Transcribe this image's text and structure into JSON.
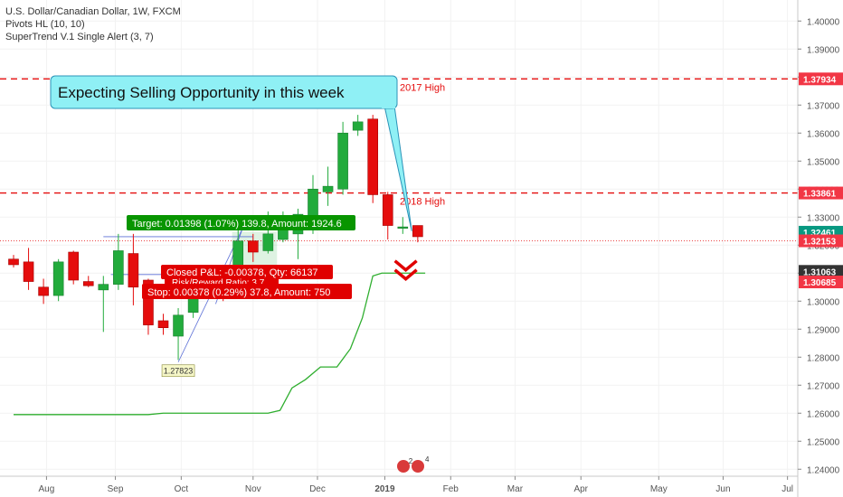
{
  "chart_data": {
    "type": "candlestick",
    "title": "U.S. Dollar/Canadian Dollar, 1W, FXCM",
    "indicators": [
      "Pivots HL (10, 10)",
      "SuperTrend V.1 Single Alert (3, 7)"
    ],
    "price_axis": {
      "range": [
        1.2375,
        1.4075
      ],
      "ticks": [
        "1.40000",
        "1.39000",
        "1.38000",
        "1.37000",
        "1.36000",
        "1.35000",
        "1.34000",
        "1.33000",
        "1.32000",
        "1.31000",
        "1.30000",
        "1.29000",
        "1.28000",
        "1.27000",
        "1.26000",
        "1.25000",
        "1.24000"
      ]
    },
    "time_axis": {
      "labels": [
        {
          "text": "Aug",
          "bar": 2.2,
          "bold": false
        },
        {
          "text": "Sep",
          "bar": 6.8,
          "bold": false
        },
        {
          "text": "Oct",
          "bar": 11.2,
          "bold": false
        },
        {
          "text": "Nov",
          "bar": 16.0,
          "bold": false
        },
        {
          "text": "Dec",
          "bar": 20.3,
          "bold": false
        },
        {
          "text": "2019",
          "bar": 24.8,
          "bold": true
        },
        {
          "text": "Feb",
          "bar": 29.2,
          "bold": false
        },
        {
          "text": "Mar",
          "bar": 33.5,
          "bold": false
        },
        {
          "text": "Apr",
          "bar": 37.9,
          "bold": false
        },
        {
          "text": "May",
          "bar": 43.1,
          "bold": false
        },
        {
          "text": "Jun",
          "bar": 47.4,
          "bold": false
        },
        {
          "text": "Jul",
          "bar": 51.7,
          "bold": false
        }
      ]
    },
    "candles": [
      {
        "o": 1.315,
        "h": 1.3165,
        "l": 1.312,
        "c": 1.313
      },
      {
        "o": 1.314,
        "h": 1.319,
        "l": 1.304,
        "c": 1.307
      },
      {
        "o": 1.305,
        "h": 1.308,
        "l": 1.299,
        "c": 1.302
      },
      {
        "o": 1.302,
        "h": 1.315,
        "l": 1.3,
        "c": 1.314
      },
      {
        "o": 1.3175,
        "h": 1.318,
        "l": 1.306,
        "c": 1.3075
      },
      {
        "o": 1.307,
        "h": 1.309,
        "l": 1.305,
        "c": 1.3055
      },
      {
        "o": 1.304,
        "h": 1.309,
        "l": 1.289,
        "c": 1.306
      },
      {
        "o": 1.306,
        "h": 1.324,
        "l": 1.304,
        "c": 1.318
      },
      {
        "o": 1.317,
        "h": 1.324,
        "l": 1.2985,
        "c": 1.305
      },
      {
        "o": 1.3075,
        "h": 1.308,
        "l": 1.288,
        "c": 1.2915
      },
      {
        "o": 1.293,
        "h": 1.2955,
        "l": 1.288,
        "c": 1.2905
      },
      {
        "o": 1.2875,
        "h": 1.2975,
        "l": 1.279,
        "c": 1.295
      },
      {
        "o": 1.296,
        "h": 1.3065,
        "l": 1.294,
        "c": 1.304
      },
      {
        "o": 1.304,
        "h": 1.3125,
        "l": 1.3025,
        "c": 1.311
      },
      {
        "o": 1.311,
        "h": 1.313,
        "l": 1.3,
        "c": 1.308
      },
      {
        "o": 1.307,
        "h": 1.326,
        "l": 1.305,
        "c": 1.3215
      },
      {
        "o": 1.3215,
        "h": 1.324,
        "l": 1.314,
        "c": 1.3175
      },
      {
        "o": 1.318,
        "h": 1.332,
        "l": 1.317,
        "c": 1.324
      },
      {
        "o": 1.322,
        "h": 1.332,
        "l": 1.321,
        "c": 1.327
      },
      {
        "o": 1.324,
        "h": 1.333,
        "l": 1.315,
        "c": 1.331
      },
      {
        "o": 1.328,
        "h": 1.345,
        "l": 1.324,
        "c": 1.34
      },
      {
        "o": 1.339,
        "h": 1.348,
        "l": 1.334,
        "c": 1.341
      },
      {
        "o": 1.34,
        "h": 1.364,
        "l": 1.338,
        "c": 1.36
      },
      {
        "o": 1.361,
        "h": 1.3665,
        "l": 1.359,
        "c": 1.364
      },
      {
        "o": 1.365,
        "h": 1.3665,
        "l": 1.335,
        "c": 1.338
      },
      {
        "o": 1.338,
        "h": 1.339,
        "l": 1.322,
        "c": 1.327
      },
      {
        "o": 1.326,
        "h": 1.33,
        "l": 1.324,
        "c": 1.3265
      },
      {
        "o": 1.327,
        "h": 1.327,
        "l": 1.321,
        "c": 1.323
      }
    ],
    "supertrend": [
      [
        0,
        1.2595
      ],
      [
        9,
        1.2595
      ],
      [
        10,
        1.26
      ],
      [
        17,
        1.26
      ],
      [
        17.8,
        1.261
      ],
      [
        18.6,
        1.269
      ],
      [
        19.5,
        1.272
      ],
      [
        20.5,
        1.2765
      ],
      [
        21.6,
        1.2765
      ],
      [
        22.5,
        1.283
      ],
      [
        23.3,
        1.294
      ],
      [
        24.0,
        1.309
      ],
      [
        24.6,
        1.31
      ],
      [
        27.5,
        1.31
      ]
    ],
    "horizontal_levels": [
      {
        "price": 1.37934,
        "label": "2017 High",
        "label_bar": 25.8
      },
      {
        "price": 1.33861,
        "label": "2018 High",
        "label_bar": 25.8
      }
    ],
    "current_price": 1.32153,
    "price_labels": [
      {
        "text": "1.37934",
        "price": 1.37934,
        "color": "#f23645"
      },
      {
        "text": "1.33861",
        "price": 1.33861,
        "color": "#f23645"
      },
      {
        "text": "1.32461",
        "price": 1.32461,
        "color": "#089981"
      },
      {
        "text": "1.32153",
        "price": 1.32153,
        "color": "#f23645"
      },
      {
        "text": "1.31063",
        "price": 1.31063,
        "color": "#333333"
      },
      {
        "text": "1.30685",
        "price": 1.30685,
        "color": "#f23645"
      }
    ],
    "pivot_low": {
      "text": "1.27823",
      "bar": 11,
      "price": 1.27823
    },
    "callout": {
      "text": "Expecting Selling Opportunity in this week"
    },
    "target_label": {
      "text": "Target: 0.01398 (1.07%) 139.8, Amount: 1924.6"
    },
    "closed_label": {
      "text": "Closed P&L: -0.00378, Qty: 66137"
    },
    "ratio_label": {
      "text": "Risk/Reward Ratio: 3.7"
    },
    "stop_label": {
      "text": "Stop: 0.00378 (0.29%) 37.8, Amount: 750"
    },
    "events_badge": {
      "count_top": "2",
      "count_bottom": "4"
    },
    "colors": {
      "up": "#22ab3c",
      "down": "#e50d0d",
      "level": "#e50d0d",
      "supertrend": "#2fae2f",
      "callout_bg": "#8ff0f5",
      "target_bg": "#089500",
      "stop_bg": "#e00000",
      "grid": "#f2f2f2"
    }
  }
}
